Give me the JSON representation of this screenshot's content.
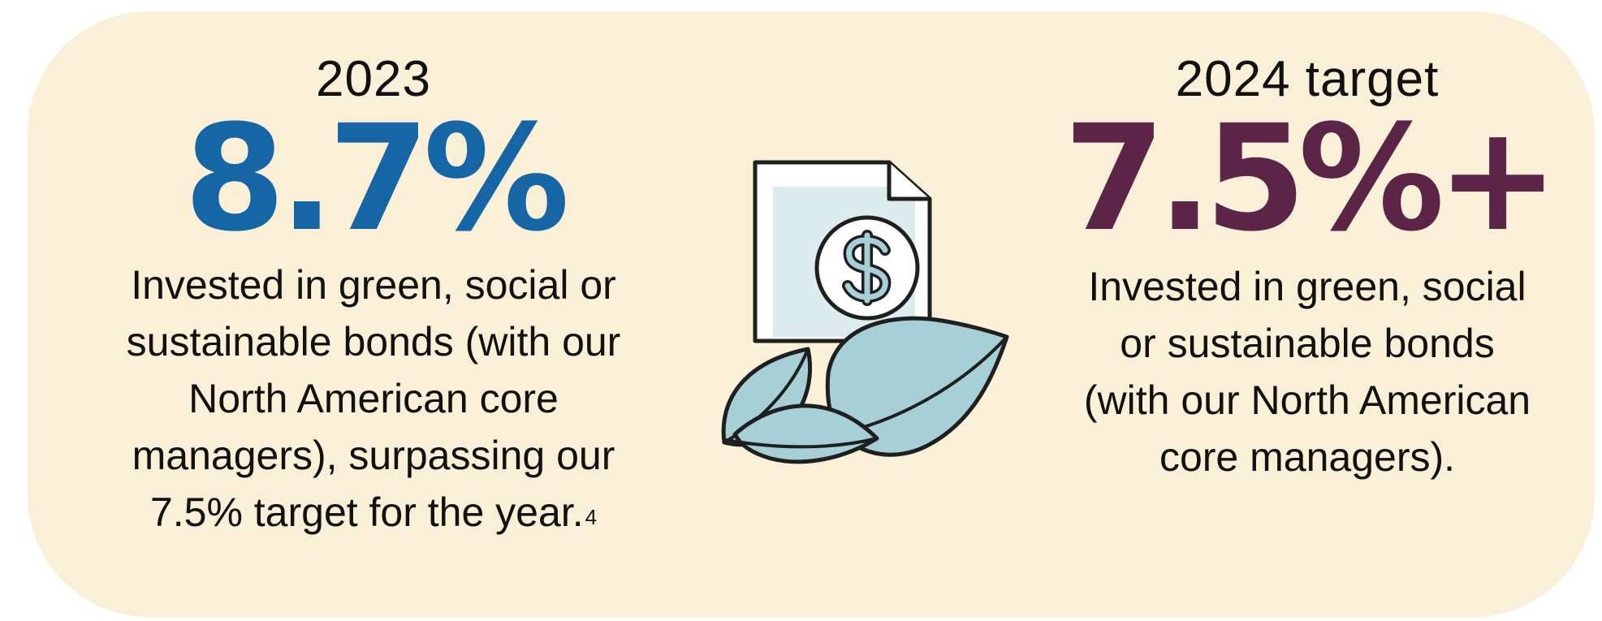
{
  "left": {
    "year_label": "2023",
    "value": "8.7%",
    "description": "Invested in green, social or sustainable bonds (with our North American core managers), surpassing our 7.5% target for the year.",
    "footnote": "4",
    "color": "#1666a6"
  },
  "right": {
    "year_label": "2024 target",
    "value": "7.5%+",
    "description": "Invested in green, social or sustainable bonds (with our North American core managers).",
    "color": "#5c2548"
  },
  "illustration": {
    "icon": "dollar-document-with-leaves-icon",
    "colors": {
      "background": "#faefd7",
      "leaf": "#a6d0d6",
      "document_inner": "#dcecee",
      "outline": "#1f1f1f"
    }
  }
}
